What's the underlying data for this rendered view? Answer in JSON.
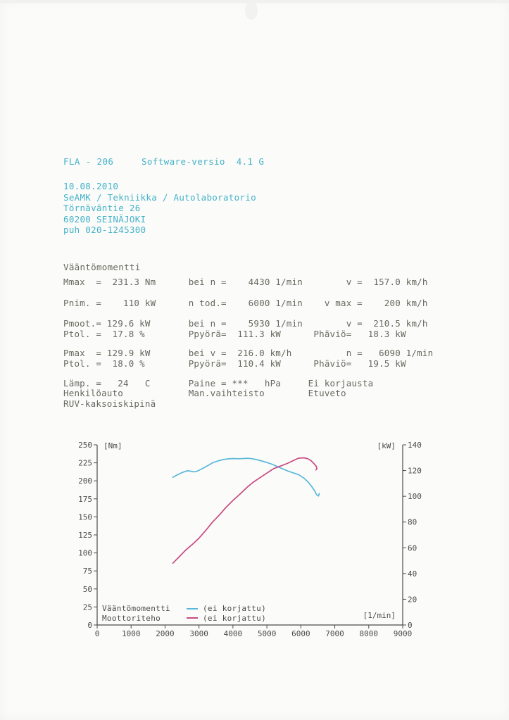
{
  "header": {
    "device_line": "FLA - 206     Software-versio  4.1 G",
    "address_lines": [
      "10.08.2010",
      "SeAMK / Tekniikka / Autolaboratorio",
      "Törnäväntie 26",
      "60200 SEINÄJOKI",
      "puh 020-1245300"
    ],
    "accent_color": "#44b3c9"
  },
  "report": {
    "title": "Vääntömomentti",
    "groups": [
      [
        "Mmax  =  231.3 Nm      bei n =    4430 1/min        v =  157.0 km/h"
      ],
      [
        "Pnim. =    110 kW      n tod.=    6000 1/min    v max =    200 km/h"
      ],
      [
        "Pmoot.= 129.6 kW       bei n =    5930 1/min        v =  210.5 km/h",
        "Ptol. =  17.8 %        Ppyörä=  111.3 kW      Phäviö=   18.3 kW"
      ],
      [
        "Pmax  = 129.9 kW       bei v =  216.0 km/h          n =   6090 1/min",
        "Ptol. =  18.0 %        Ppyörä=  110.4 kW      Phäviö=   19.5 kW"
      ],
      [
        "Lämp. =   24   C       Paine = ***   hPa     Ei korjausta",
        "Henkilöauto            Man.vaihteisto        Etuveto",
        "RUV-kaksoiskipinä"
      ]
    ],
    "text_color": "#68685f"
  },
  "chart_data": {
    "type": "line",
    "title": "",
    "x_axis": {
      "label": "[1/min]",
      "min": 0,
      "max": 9000,
      "tick_step": 1000
    },
    "y_left_axis": {
      "label": "[Nm]",
      "min": 0,
      "max": 250,
      "tick_step": 25
    },
    "y_right_axis": {
      "label": "[kW]",
      "min": 0,
      "max": 140,
      "tick_step": 20
    },
    "grid": false,
    "legend_position": "inside-bottom-left",
    "series": [
      {
        "name": "Vääntömomentti",
        "note": "(ei korjattu)",
        "axis": "left",
        "unit": "Nm",
        "color": "#5ab8da",
        "points": [
          [
            2230,
            205
          ],
          [
            2350,
            208
          ],
          [
            2500,
            211.5
          ],
          [
            2650,
            214
          ],
          [
            2750,
            213.5
          ],
          [
            2850,
            212.5
          ],
          [
            2950,
            213.5
          ],
          [
            3100,
            217
          ],
          [
            3250,
            221
          ],
          [
            3400,
            225
          ],
          [
            3550,
            227.5
          ],
          [
            3700,
            229.5
          ],
          [
            3850,
            230.5
          ],
          [
            4000,
            231
          ],
          [
            4150,
            230.7
          ],
          [
            4300,
            231
          ],
          [
            4430,
            231.3
          ],
          [
            4550,
            230.8
          ],
          [
            4700,
            229.5
          ],
          [
            4850,
            227.5
          ],
          [
            5000,
            225.5
          ],
          [
            5150,
            223
          ],
          [
            5300,
            220
          ],
          [
            5450,
            217
          ],
          [
            5600,
            214
          ],
          [
            5750,
            211.5
          ],
          [
            5930,
            208.7
          ],
          [
            6090,
            203.7
          ],
          [
            6200,
            199
          ],
          [
            6300,
            193.5
          ],
          [
            6400,
            186.5
          ],
          [
            6470,
            180.5
          ],
          [
            6520,
            179
          ],
          [
            6545,
            182.5
          ]
        ]
      },
      {
        "name": "Moottoriteho",
        "note": "(ei korjattu)",
        "axis": "right",
        "unit": "kW",
        "color": "#c74a80",
        "points": [
          [
            2230,
            48
          ],
          [
            2400,
            52.5
          ],
          [
            2600,
            58
          ],
          [
            2800,
            62.5
          ],
          [
            3000,
            67.5
          ],
          [
            3200,
            73.5
          ],
          [
            3400,
            80
          ],
          [
            3600,
            85.5
          ],
          [
            3800,
            91.5
          ],
          [
            4000,
            96.8
          ],
          [
            4200,
            101.5
          ],
          [
            4430,
            107.3
          ],
          [
            4600,
            111
          ],
          [
            4800,
            114.5
          ],
          [
            5000,
            118
          ],
          [
            5200,
            121.5
          ],
          [
            5400,
            123.5
          ],
          [
            5600,
            125.5
          ],
          [
            5800,
            128
          ],
          [
            5930,
            129.6
          ],
          [
            6090,
            129.9
          ],
          [
            6200,
            129.2
          ],
          [
            6300,
            127.7
          ],
          [
            6400,
            125
          ],
          [
            6450,
            123.5
          ],
          [
            6475,
            121.5
          ],
          [
            6445,
            120.5
          ]
        ]
      }
    ]
  }
}
